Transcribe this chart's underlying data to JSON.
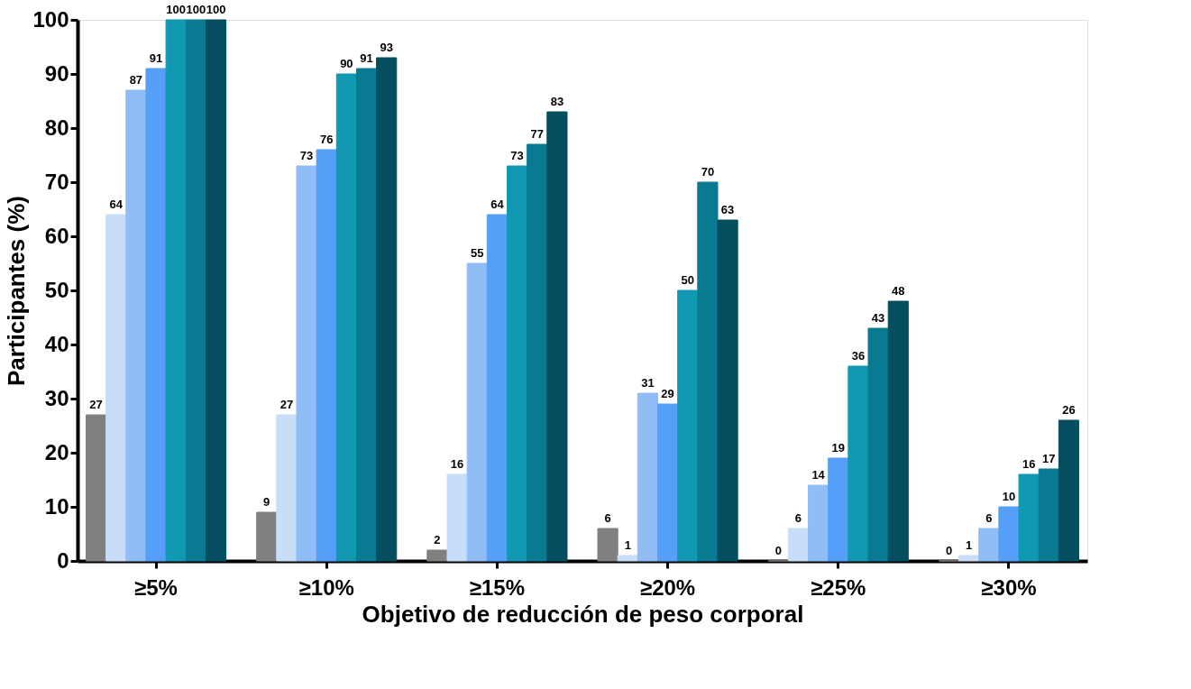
{
  "chart_data": {
    "type": "bar",
    "xlabel": "Objetivo de reducción de peso corporal",
    "ylabel": "Participantes (%)",
    "categories": [
      "≥5%",
      "≥10%",
      "≥15%",
      "≥20%",
      "≥25%",
      "≥30%"
    ],
    "ylim": [
      0,
      100
    ],
    "yticks": [
      0,
      10,
      20,
      30,
      40,
      50,
      60,
      70,
      80,
      90,
      100
    ],
    "grid": false,
    "legend": false,
    "series": [
      {
        "color": "#808080",
        "values": [
          27,
          9,
          2,
          6,
          0,
          0
        ],
        "value_labels": [
          "27",
          "9",
          "2",
          "6",
          "0",
          "0"
        ]
      },
      {
        "color": "#c8ddf7",
        "values": [
          64,
          27,
          16,
          1,
          6,
          1
        ],
        "value_labels": [
          "64",
          "27",
          "16",
          "1",
          "6",
          "1"
        ]
      },
      {
        "color": "#91bdf7",
        "values": [
          87,
          73,
          55,
          31,
          14,
          6
        ],
        "value_labels": [
          "87",
          "73",
          "55",
          "31",
          "14",
          "6"
        ]
      },
      {
        "color": "#559ff8",
        "values": [
          91,
          76,
          64,
          29,
          19,
          10
        ],
        "value_labels": [
          "91",
          "76",
          "64",
          "29",
          "19",
          "10"
        ]
      },
      {
        "color": "#1199b2",
        "values": [
          100,
          90,
          73,
          50,
          36,
          16
        ],
        "value_labels": [
          "100",
          "90",
          "73",
          "50",
          "36",
          "16"
        ]
      },
      {
        "color": "#087b92",
        "values": [
          100,
          91,
          77,
          70,
          43,
          17
        ],
        "value_labels": [
          "100",
          "91",
          "77",
          "70",
          "43",
          "17"
        ]
      },
      {
        "color": "#054e60",
        "values": [
          100,
          93,
          83,
          63,
          48,
          26
        ],
        "value_labels": [
          "100",
          "93",
          "83",
          "63",
          "48",
          "26"
        ]
      }
    ]
  }
}
